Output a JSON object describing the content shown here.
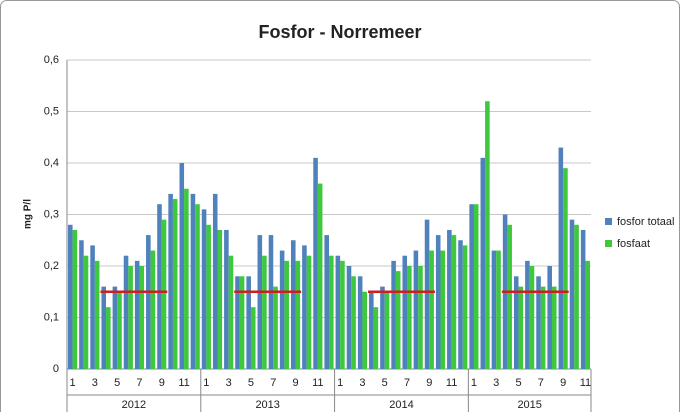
{
  "chart_data": {
    "type": "bar",
    "title": "Fosfor - Norremeer",
    "y_label": "mg P/l",
    "groups": [
      {
        "name": "2012",
        "categories": [
          "1",
          null,
          "3",
          null,
          "5",
          null,
          "7",
          null,
          "9",
          null,
          "11",
          null
        ]
      },
      {
        "name": "2013",
        "categories": [
          "1",
          null,
          "3",
          null,
          "5",
          null,
          "7",
          null,
          "9",
          null,
          "11",
          null
        ]
      },
      {
        "name": "2014",
        "categories": [
          "1",
          null,
          "3",
          null,
          "5",
          null,
          "7",
          null,
          "9",
          null,
          "11",
          null
        ]
      },
      {
        "name": "2015",
        "categories": [
          "1",
          null,
          "3",
          null,
          "5",
          null,
          "7",
          null,
          "9",
          null,
          "11"
        ]
      }
    ],
    "series": [
      {
        "name": "fosfor totaal",
        "color": "#4f81bd",
        "values": [
          0.28,
          0.25,
          0.24,
          0.16,
          0.16,
          0.22,
          0.21,
          0.26,
          0.32,
          0.34,
          0.4,
          0.34,
          0.31,
          0.34,
          0.27,
          0.18,
          0.18,
          0.26,
          0.26,
          0.23,
          0.25,
          0.24,
          0.41,
          0.26,
          0.22,
          0.2,
          0.18,
          0.15,
          0.16,
          0.21,
          0.22,
          0.23,
          0.29,
          0.26,
          0.27,
          0.25,
          0.32,
          0.41,
          0.23,
          0.3,
          0.18,
          0.21,
          0.18,
          0.2,
          0.43,
          0.29,
          0.27
        ]
      },
      {
        "name": "fosfaat",
        "color": "#3ec83e",
        "values": [
          0.27,
          0.22,
          0.21,
          0.12,
          0.15,
          0.2,
          0.2,
          0.23,
          0.29,
          0.33,
          0.35,
          0.32,
          0.28,
          0.27,
          0.22,
          0.18,
          0.12,
          0.22,
          0.16,
          0.21,
          0.21,
          0.22,
          0.36,
          0.22,
          0.21,
          0.18,
          0.15,
          0.12,
          0.15,
          0.19,
          0.2,
          0.2,
          0.23,
          0.23,
          0.26,
          0.24,
          0.32,
          0.52,
          0.23,
          0.28,
          0.16,
          0.2,
          0.16,
          0.16,
          0.39,
          0.28,
          0.21
        ]
      }
    ],
    "norm": {
      "value": 0.15,
      "months": [
        4,
        9
      ],
      "color": "#cc2020"
    },
    "ylim": [
      0,
      0.6
    ],
    "yticks": [
      {
        "value": 0,
        "label": "0"
      },
      {
        "value": 0.1,
        "label": "0,1"
      },
      {
        "value": 0.2,
        "label": "0,2"
      },
      {
        "value": 0.3,
        "label": "0,3"
      },
      {
        "value": 0.4,
        "label": "0,4"
      },
      {
        "value": 0.5,
        "label": "0,5"
      },
      {
        "value": 0.6,
        "label": "0,6"
      }
    ],
    "grid": true,
    "legend": "right"
  }
}
